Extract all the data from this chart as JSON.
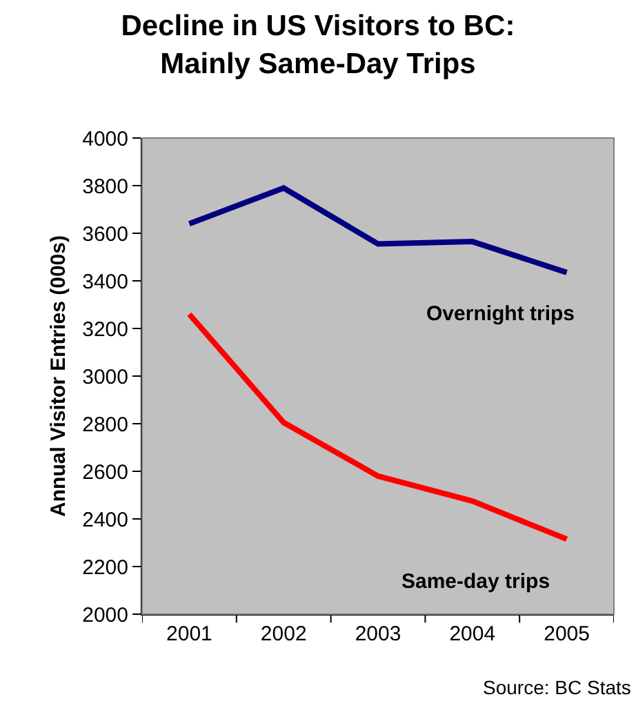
{
  "chart_data": {
    "type": "line",
    "title": "Decline in US Visitors to BC:\nMainly Same-Day Trips",
    "ylabel": "Annual Visitor Entries (000s)",
    "categories": [
      "2001",
      "2002",
      "2003",
      "2004",
      "2005"
    ],
    "series": [
      {
        "name": "Overnight trips",
        "color": "#000080",
        "values": [
          3640,
          3790,
          3555,
          3565,
          3435
        ]
      },
      {
        "name": "Same-day trips",
        "color": "#ff0000",
        "values": [
          3260,
          2805,
          2580,
          2475,
          2315
        ]
      }
    ],
    "ylim": [
      2000,
      4000
    ],
    "yticks": [
      2000,
      2200,
      2400,
      2600,
      2800,
      3000,
      3200,
      3400,
      3600,
      3800,
      4000
    ],
    "grid": false,
    "legend": false,
    "marker": "none",
    "line_style": "solid",
    "annotations": [
      "Source: BC Stats"
    ]
  }
}
